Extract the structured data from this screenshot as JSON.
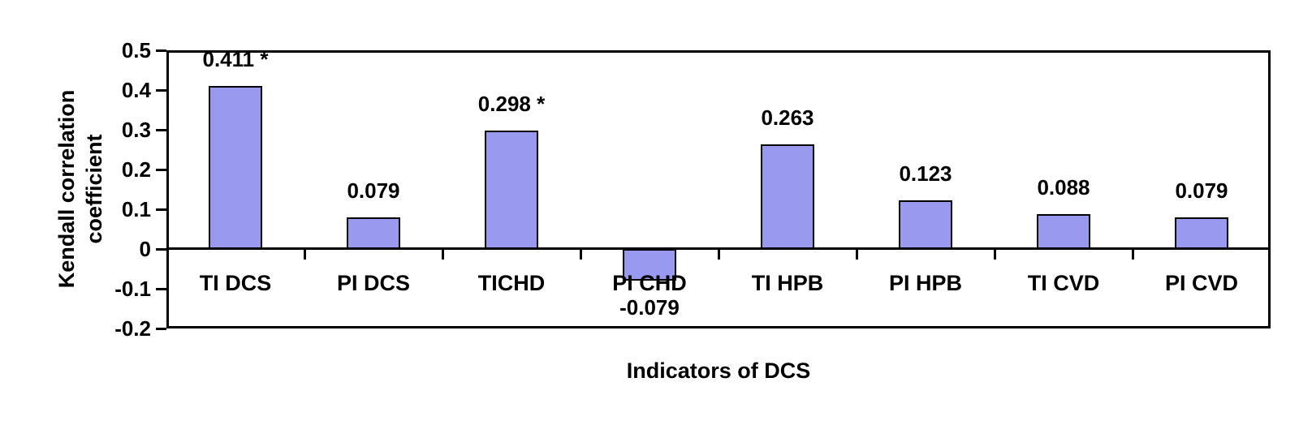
{
  "chart_data": {
    "type": "bar",
    "title": "",
    "categories": [
      "TI DCS",
      "PI DCS",
      "TICHD",
      "PI CHD",
      "TI HPB",
      "PI HPB",
      "TI CVD",
      "PI CVD"
    ],
    "values": [
      0.411,
      0.079,
      0.298,
      -0.079,
      0.263,
      0.123,
      0.088,
      0.079
    ],
    "bar_labels": [
      "0.411 *",
      "0.079",
      "0.298 *",
      "-0.079",
      "0.263",
      "0.123",
      "0.088",
      "0.079"
    ],
    "xlabel": "Indicators of DCS",
    "ylabel": "Kendall correlation coefficient",
    "ylabel_lines": [
      "Kendall correlation",
      "coefficient"
    ],
    "ylim": [
      -0.2,
      0.5
    ],
    "yticks": [
      {
        "label": "0.5",
        "value": 0.5
      },
      {
        "label": "0.4",
        "value": 0.4
      },
      {
        "label": "0.3",
        "value": 0.3
      },
      {
        "label": "0.2",
        "value": 0.2
      },
      {
        "label": "0.1",
        "value": 0.1
      },
      {
        "label": "0",
        "value": 0.0
      },
      {
        "label": "-0.1",
        "value": -0.1
      },
      {
        "label": "-0.2",
        "value": -0.2
      }
    ],
    "grid": false,
    "legend": null,
    "colors": {
      "bar_fill": "#9999F0",
      "bar_border": "#000000",
      "axis": "#000000",
      "text": "#000000",
      "background": "#FFFFFF"
    }
  }
}
